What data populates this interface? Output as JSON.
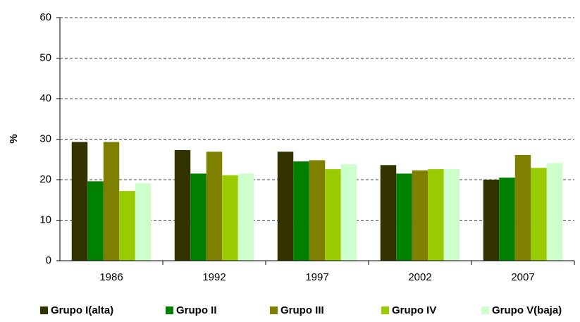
{
  "chart_data": {
    "type": "bar",
    "y_label": "%",
    "categories": [
      "1986",
      "1992",
      "1997",
      "2002",
      "2007"
    ],
    "series": [
      {
        "name": "Grupo I(alta)",
        "color": "#333300",
        "values": [
          29.3,
          27.3,
          26.9,
          23.6,
          20.0
        ]
      },
      {
        "name": "Grupo II",
        "color": "#008000",
        "values": [
          19.6,
          21.5,
          24.5,
          21.5,
          20.5
        ]
      },
      {
        "name": "Grupo III",
        "color": "#808000",
        "values": [
          29.3,
          26.9,
          24.8,
          22.3,
          26.1
        ]
      },
      {
        "name": "Grupo IV",
        "color": "#99cc00",
        "values": [
          17.2,
          21.1,
          22.6,
          22.6,
          22.9
        ]
      },
      {
        "name": "Grupo V(baja)",
        "color": "#ccffcc",
        "values": [
          19.1,
          21.5,
          23.8,
          22.6,
          24.1
        ]
      }
    ],
    "ylim": [
      0,
      60
    ],
    "yticks": [
      0,
      10,
      20,
      30,
      40,
      50,
      60
    ],
    "grid": true,
    "legend": "bottom"
  }
}
